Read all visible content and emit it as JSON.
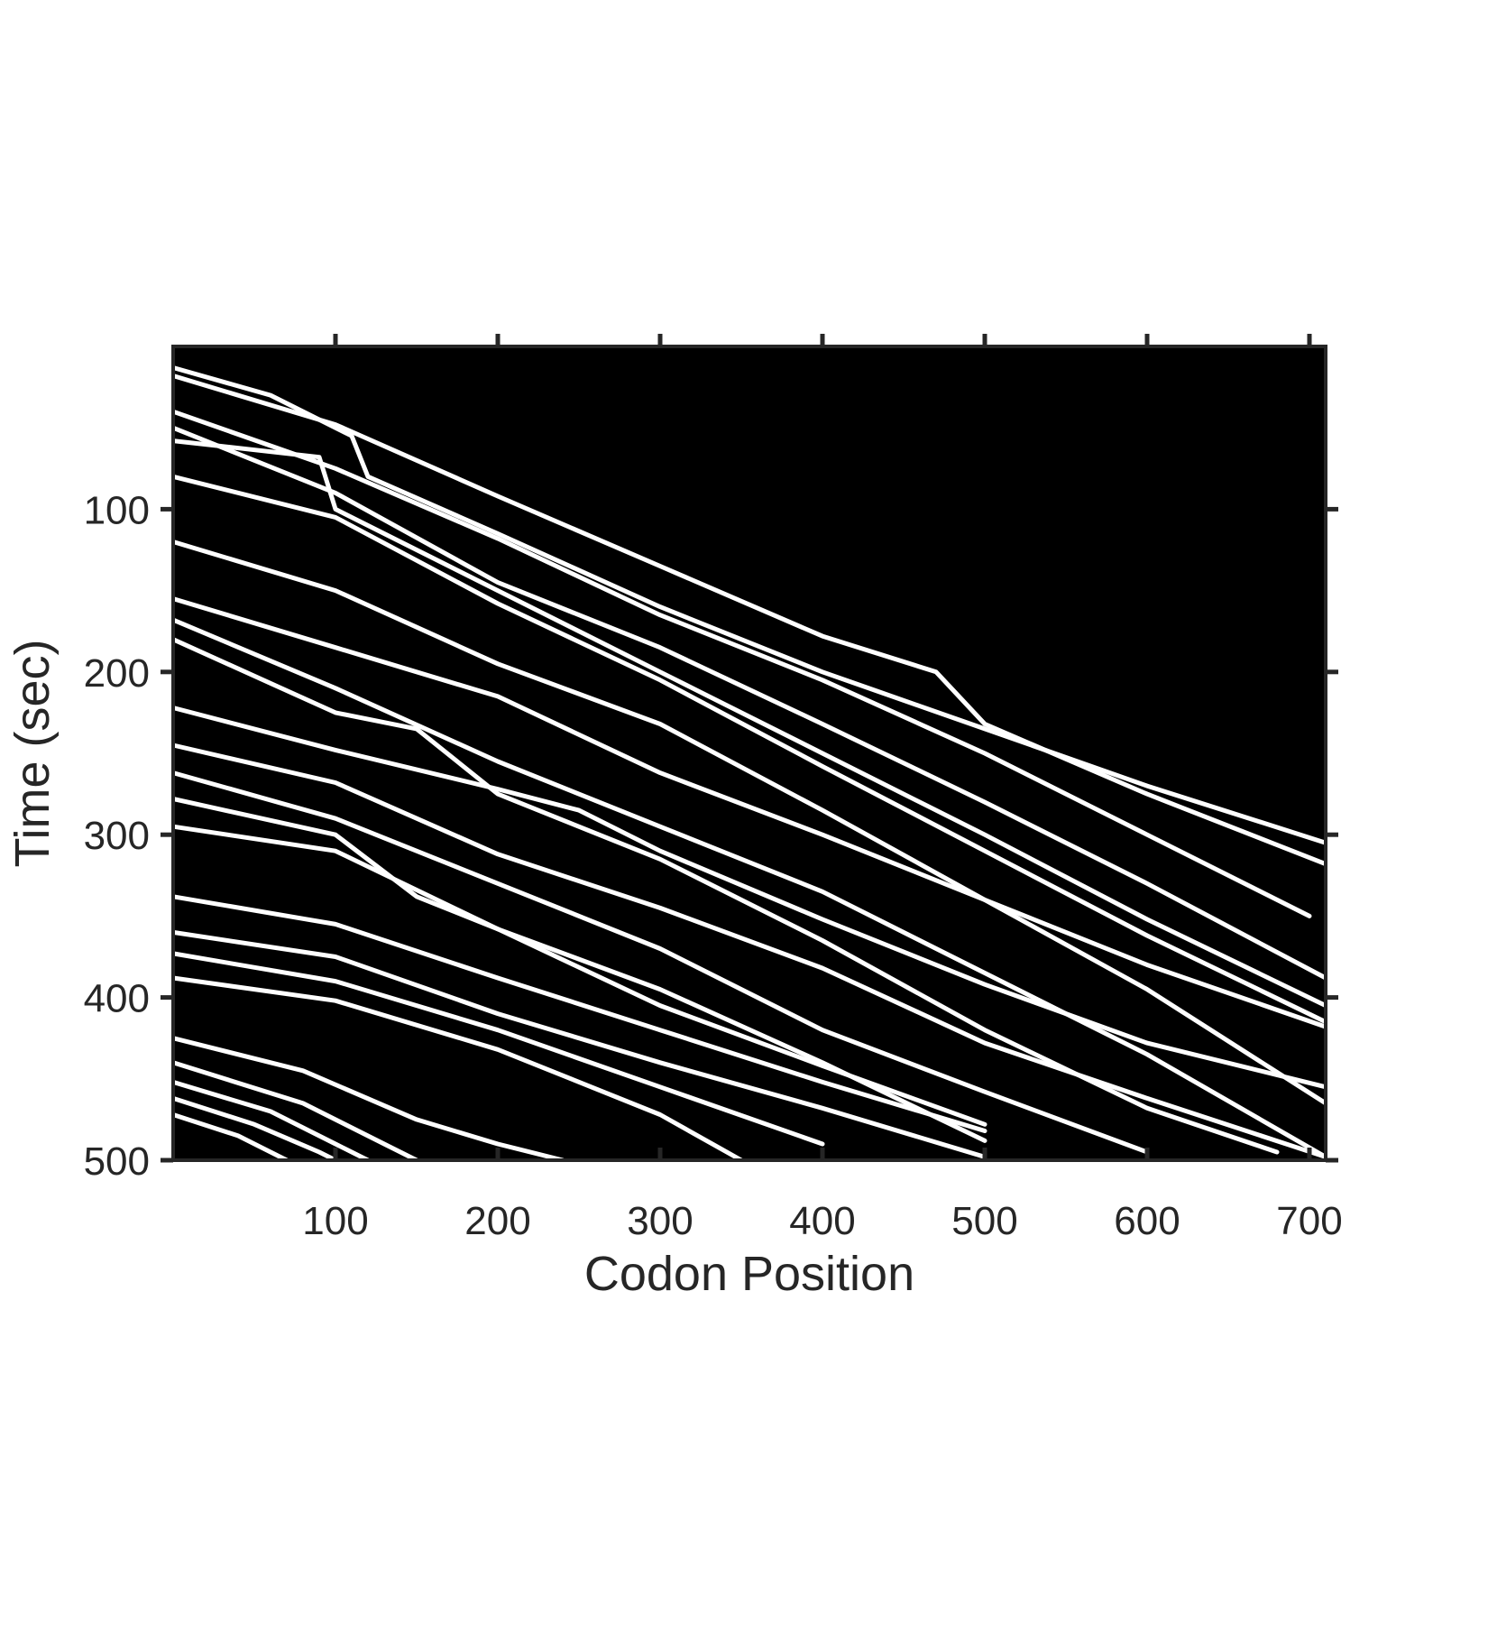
{
  "chart_data": {
    "type": "heatmap",
    "title": "",
    "xlabel": "Codon Position",
    "ylabel": "Time (sec)",
    "xlim": [
      0,
      710
    ],
    "ylim": [
      0,
      500
    ],
    "y_reversed": true,
    "x_ticks": [
      100,
      200,
      300,
      400,
      500,
      600,
      700
    ],
    "y_ticks": [
      100,
      200,
      300,
      400,
      500
    ],
    "background_color": "#000000",
    "trace_color": "#ffffff",
    "grid": false,
    "traces": [
      {
        "points": [
          [
            0,
            13
          ],
          [
            60,
            30
          ],
          [
            110,
            55
          ],
          [
            120,
            80
          ],
          [
            200,
            115
          ],
          [
            300,
            160
          ],
          [
            400,
            200
          ],
          [
            500,
            235
          ],
          [
            600,
            270
          ],
          [
            710,
            305
          ]
        ]
      },
      {
        "points": [
          [
            0,
            18
          ],
          [
            100,
            48
          ],
          [
            200,
            92
          ],
          [
            300,
            135
          ],
          [
            400,
            178
          ],
          [
            470,
            200
          ],
          [
            500,
            232
          ],
          [
            600,
            275
          ],
          [
            710,
            318
          ]
        ]
      },
      {
        "points": [
          [
            0,
            40
          ],
          [
            100,
            75
          ],
          [
            200,
            118
          ],
          [
            300,
            165
          ],
          [
            400,
            205
          ],
          [
            500,
            250
          ],
          [
            600,
            300
          ],
          [
            700,
            350
          ]
        ]
      },
      {
        "points": [
          [
            0,
            50
          ],
          [
            100,
            90
          ],
          [
            200,
            145
          ],
          [
            300,
            185
          ],
          [
            400,
            232
          ],
          [
            500,
            280
          ],
          [
            600,
            330
          ],
          [
            710,
            388
          ]
        ]
      },
      {
        "points": [
          [
            0,
            58
          ],
          [
            90,
            68
          ],
          [
            100,
            100
          ],
          [
            200,
            150
          ],
          [
            300,
            200
          ],
          [
            400,
            250
          ],
          [
            500,
            300
          ],
          [
            600,
            352
          ],
          [
            710,
            405
          ]
        ]
      },
      {
        "points": [
          [
            0,
            80
          ],
          [
            100,
            105
          ],
          [
            200,
            158
          ],
          [
            300,
            205
          ],
          [
            400,
            258
          ],
          [
            500,
            310
          ],
          [
            600,
            362
          ],
          [
            710,
            415
          ]
        ]
      },
      {
        "points": [
          [
            0,
            120
          ],
          [
            100,
            150
          ],
          [
            200,
            195
          ],
          [
            300,
            232
          ],
          [
            400,
            285
          ],
          [
            500,
            340
          ],
          [
            600,
            395
          ],
          [
            710,
            465
          ]
        ]
      },
      {
        "points": [
          [
            0,
            155
          ],
          [
            100,
            185
          ],
          [
            200,
            215
          ],
          [
            300,
            262
          ],
          [
            400,
            300
          ],
          [
            500,
            340
          ],
          [
            600,
            380
          ],
          [
            710,
            418
          ]
        ]
      },
      {
        "points": [
          [
            0,
            168
          ],
          [
            100,
            210
          ],
          [
            200,
            255
          ],
          [
            300,
            295
          ],
          [
            400,
            335
          ],
          [
            500,
            385
          ],
          [
            600,
            435
          ],
          [
            710,
            498
          ]
        ]
      },
      {
        "points": [
          [
            0,
            180
          ],
          [
            100,
            225
          ],
          [
            150,
            235
          ],
          [
            200,
            275
          ],
          [
            300,
            315
          ],
          [
            400,
            365
          ],
          [
            500,
            420
          ],
          [
            600,
            468
          ],
          [
            680,
            495
          ]
        ]
      },
      {
        "points": [
          [
            0,
            222
          ],
          [
            100,
            248
          ],
          [
            200,
            272
          ],
          [
            250,
            285
          ],
          [
            300,
            310
          ],
          [
            400,
            352
          ],
          [
            500,
            392
          ],
          [
            600,
            428
          ],
          [
            710,
            455
          ]
        ]
      },
      {
        "points": [
          [
            0,
            245
          ],
          [
            100,
            268
          ],
          [
            200,
            312
          ],
          [
            300,
            345
          ],
          [
            400,
            382
          ],
          [
            500,
            428
          ],
          [
            600,
            462
          ],
          [
            710,
            498
          ]
        ]
      },
      {
        "points": [
          [
            0,
            262
          ],
          [
            100,
            290
          ],
          [
            200,
            330
          ],
          [
            300,
            370
          ],
          [
            400,
            420
          ],
          [
            500,
            458
          ],
          [
            600,
            495
          ]
        ]
      },
      {
        "points": [
          [
            0,
            278
          ],
          [
            100,
            300
          ],
          [
            150,
            338
          ],
          [
            200,
            358
          ],
          [
            300,
            395
          ],
          [
            400,
            440
          ],
          [
            500,
            488
          ]
        ]
      },
      {
        "points": [
          [
            0,
            295
          ],
          [
            100,
            310
          ],
          [
            200,
            358
          ],
          [
            300,
            405
          ],
          [
            400,
            442
          ],
          [
            500,
            478
          ]
        ]
      },
      {
        "points": [
          [
            0,
            338
          ],
          [
            100,
            355
          ],
          [
            200,
            388
          ],
          [
            300,
            420
          ],
          [
            400,
            452
          ],
          [
            500,
            482
          ]
        ]
      },
      {
        "points": [
          [
            0,
            360
          ],
          [
            100,
            375
          ],
          [
            200,
            410
          ],
          [
            300,
            440
          ],
          [
            400,
            468
          ],
          [
            500,
            498
          ]
        ]
      },
      {
        "points": [
          [
            0,
            373
          ],
          [
            100,
            390
          ],
          [
            200,
            420
          ],
          [
            300,
            455
          ],
          [
            400,
            490
          ]
        ]
      },
      {
        "points": [
          [
            0,
            388
          ],
          [
            100,
            402
          ],
          [
            200,
            432
          ],
          [
            300,
            472
          ],
          [
            350,
            500
          ]
        ]
      },
      {
        "points": [
          [
            0,
            425
          ],
          [
            80,
            445
          ],
          [
            150,
            475
          ],
          [
            200,
            490
          ],
          [
            240,
            500
          ]
        ]
      },
      {
        "points": [
          [
            0,
            440
          ],
          [
            80,
            465
          ],
          [
            130,
            490
          ],
          [
            150,
            500
          ]
        ]
      },
      {
        "points": [
          [
            0,
            452
          ],
          [
            60,
            470
          ],
          [
            100,
            490
          ],
          [
            120,
            500
          ]
        ]
      },
      {
        "points": [
          [
            0,
            462
          ],
          [
            50,
            478
          ],
          [
            90,
            495
          ],
          [
            100,
            500
          ]
        ]
      },
      {
        "points": [
          [
            0,
            472
          ],
          [
            40,
            485
          ],
          [
            70,
            500
          ]
        ]
      }
    ]
  }
}
